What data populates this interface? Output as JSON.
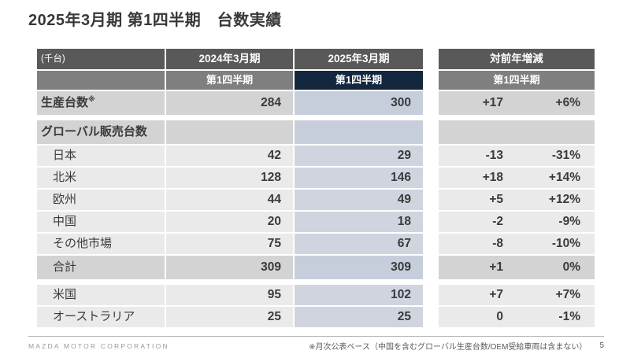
{
  "title": "2025年3月期 第1四半期　台数実績",
  "table": {
    "unit_label": "(千台)",
    "headers": {
      "fy2024": "2024年3月期",
      "fy2025": "2025年3月期",
      "yoy": "対前年増減",
      "q1_2024": "第1四半期",
      "q1_2025": "第1四半期",
      "q1_yoy": "第1四半期"
    },
    "rows": [
      {
        "label": "生産台数",
        "note": "※",
        "v2024": "284",
        "v2025": "300",
        "diff": "+17",
        "pct": "+6%"
      },
      {
        "label": "グローバル販売台数",
        "v2024": "",
        "v2025": "",
        "diff": "",
        "pct": ""
      },
      {
        "label": "日本",
        "v2024": "42",
        "v2025": "29",
        "diff": "-13",
        "pct": "-31%"
      },
      {
        "label": "北米",
        "v2024": "128",
        "v2025": "146",
        "diff": "+18",
        "pct": "+14%"
      },
      {
        "label": "欧州",
        "v2024": "44",
        "v2025": "49",
        "diff": "+5",
        "pct": "+12%"
      },
      {
        "label": "中国",
        "v2024": "20",
        "v2025": "18",
        "diff": "-2",
        "pct": "-9%"
      },
      {
        "label": "その他市場",
        "v2024": "75",
        "v2025": "67",
        "diff": "-8",
        "pct": "-10%"
      },
      {
        "label": "合計",
        "v2024": "309",
        "v2025": "309",
        "diff": "+1",
        "pct": "0%"
      },
      {
        "label": "米国",
        "v2024": "95",
        "v2025": "102",
        "diff": "+7",
        "pct": "+7%"
      },
      {
        "label": "オーストラリア",
        "v2024": "25",
        "v2025": "25",
        "diff": "0",
        "pct": "-1%"
      }
    ]
  },
  "footer": {
    "company": "MAZDA MOTOR CORPORATION",
    "note": "※月次公表ベース（中国を含むグローバル生産台数/OEM受給車両は含まない）",
    "page": "5"
  },
  "colors": {
    "header-dark": "#595959",
    "header-mid": "#7f7f7f",
    "navy": "#13273f",
    "row-gray": "#d3d3d3",
    "row-gray-blue": "#c7cedb",
    "row-light": "#eaeaea",
    "row-light-blue": "#cfd4df",
    "text-dark": "#3a3a3a"
  }
}
